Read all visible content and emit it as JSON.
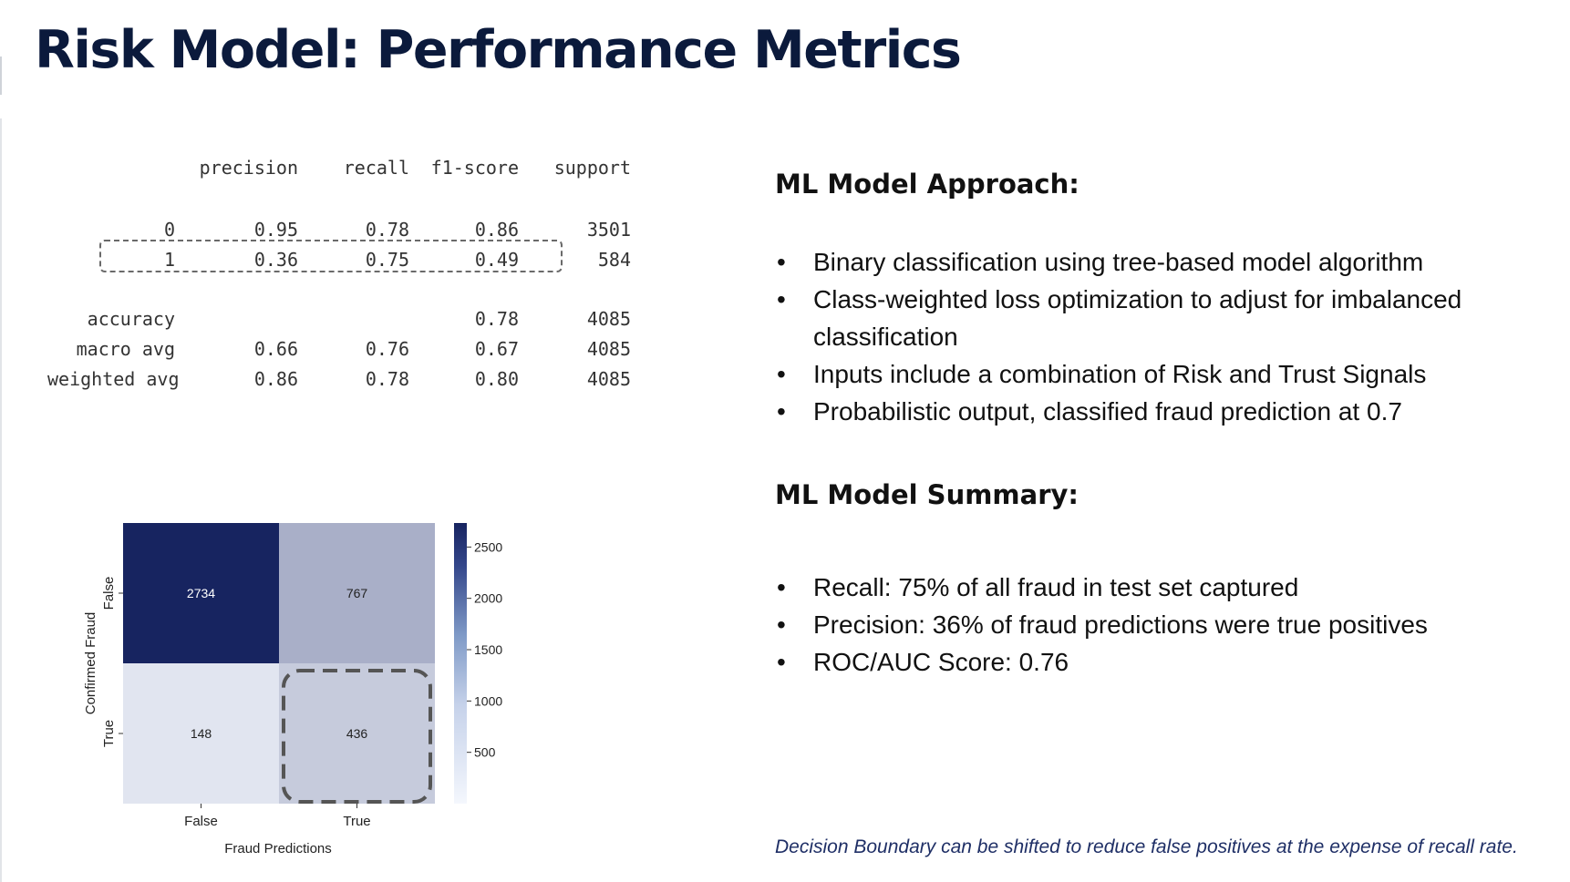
{
  "title": "Risk Model: Performance Metrics",
  "report": {
    "headers": [
      "precision",
      "recall",
      "f1-score",
      "support"
    ],
    "rows": [
      {
        "label": "0",
        "precision": "0.95",
        "recall": "0.78",
        "f1": "0.86",
        "support": "3501"
      },
      {
        "label": "1",
        "precision": "0.36",
        "recall": "0.75",
        "f1": "0.49",
        "support": "584"
      },
      {
        "label": "accuracy",
        "precision": "",
        "recall": "",
        "f1": "0.78",
        "support": "4085"
      },
      {
        "label": "macro avg",
        "precision": "0.66",
        "recall": "0.76",
        "f1": "0.67",
        "support": "4085"
      },
      {
        "label": "weighted avg",
        "precision": "0.86",
        "recall": "0.78",
        "f1": "0.80",
        "support": "4085"
      }
    ],
    "highlighted_row": "1"
  },
  "chart_data": {
    "type": "heatmap",
    "x_categories": [
      "False",
      "True"
    ],
    "y_categories": [
      "False",
      "True"
    ],
    "values": [
      [
        2734,
        767
      ],
      [
        148,
        436
      ]
    ],
    "xlabel": "Fraud Predictions",
    "ylabel": "Confirmed Fraud",
    "colorbar": {
      "ticks": [
        500,
        1000,
        1500,
        2000,
        2500
      ],
      "range": [
        0,
        2734
      ]
    },
    "colors": {
      "low": "#f4f7fd",
      "high": "#172460"
    },
    "highlighted_cell": {
      "row": "True",
      "col": "True"
    }
  },
  "approach": {
    "heading": "ML Model Approach:",
    "items": [
      "Binary classification using tree-based model algorithm",
      "Class-weighted loss optimization to adjust for imbalanced classification",
      "Inputs include a combination of Risk and Trust Signals",
      "Probabilistic output, classified fraud prediction at 0.7"
    ]
  },
  "summary": {
    "heading": "ML Model Summary:",
    "items": [
      "Recall: 75% of all fraud in test set captured",
      "Precision: 36% of fraud predictions were true positives",
      "ROC/AUC Score: 0.76"
    ]
  },
  "bullet_glyph": "•",
  "footnote": "Decision Boundary can be shifted to reduce false positives at the expense of recall rate."
}
